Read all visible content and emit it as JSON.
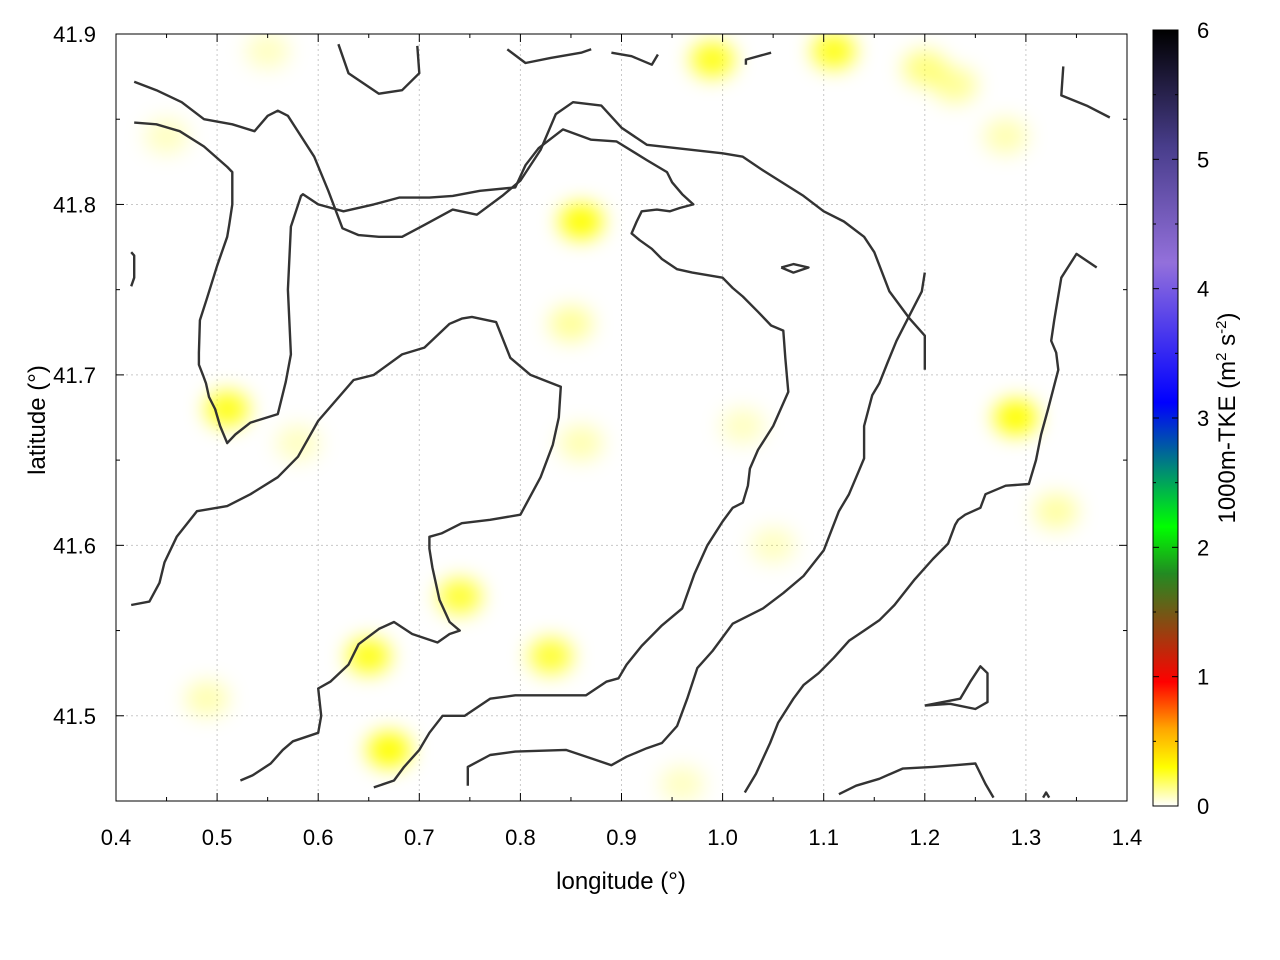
{
  "chart_data": {
    "type": "heatmap",
    "xlabel": "longitude (°)",
    "ylabel": "latitude (°)",
    "colorbar_label": "1000m-TKE (m² s⁻²)",
    "colorbar_label_parts": {
      "main": "1000m-TKE (m",
      "sup1": "2",
      "mid": " s",
      "sup2": "-2",
      "end": ")"
    },
    "xlim": [
      0.4,
      1.4
    ],
    "ylim": [
      41.45,
      41.9
    ],
    "x_ticks": [
      "0.4",
      "0.5",
      "0.6",
      "0.7",
      "0.8",
      "0.9",
      "1.0",
      "1.1",
      "1.2",
      "1.3",
      "1.4"
    ],
    "y_ticks": [
      "41.5",
      "41.6",
      "41.7",
      "41.8",
      "41.9"
    ],
    "colorbar_range": [
      0,
      6
    ],
    "colorbar_ticks": [
      "0",
      "1",
      "2",
      "3",
      "4",
      "5",
      "6"
    ],
    "colorbar_colors": [
      "#ffffff",
      "#ffff00",
      "#ffa500",
      "#ff0000",
      "#228b22",
      "#00ff00",
      "#0000ff",
      "#9370db",
      "#483d8b",
      "#000000"
    ],
    "grid": true,
    "tke_blobs": [
      {
        "x": 0.99,
        "y": 41.885,
        "value": 0.45
      },
      {
        "x": 1.11,
        "y": 41.89,
        "value": 0.45
      },
      {
        "x": 1.2,
        "y": 41.88,
        "value": 0.25
      },
      {
        "x": 0.86,
        "y": 41.79,
        "value": 0.5
      },
      {
        "x": 0.51,
        "y": 41.68,
        "value": 0.45
      },
      {
        "x": 0.74,
        "y": 41.57,
        "value": 0.4
      },
      {
        "x": 0.65,
        "y": 41.535,
        "value": 0.45
      },
      {
        "x": 0.83,
        "y": 41.535,
        "value": 0.4
      },
      {
        "x": 0.67,
        "y": 41.48,
        "value": 0.5
      },
      {
        "x": 1.29,
        "y": 41.675,
        "value": 0.5
      },
      {
        "x": 1.23,
        "y": 41.87,
        "value": 0.2
      },
      {
        "x": 1.28,
        "y": 41.84,
        "value": 0.15
      },
      {
        "x": 0.58,
        "y": 41.66,
        "value": 0.12
      },
      {
        "x": 0.45,
        "y": 41.84,
        "value": 0.12
      },
      {
        "x": 0.55,
        "y": 41.89,
        "value": 0.12
      },
      {
        "x": 0.49,
        "y": 41.51,
        "value": 0.15
      },
      {
        "x": 0.86,
        "y": 41.66,
        "value": 0.15
      },
      {
        "x": 1.02,
        "y": 41.67,
        "value": 0.12
      },
      {
        "x": 1.05,
        "y": 41.6,
        "value": 0.12
      },
      {
        "x": 1.33,
        "y": 41.62,
        "value": 0.18
      },
      {
        "x": 0.96,
        "y": 41.46,
        "value": 0.12
      },
      {
        "x": 0.85,
        "y": 41.73,
        "value": 0.2
      }
    ],
    "contours": [
      [
        [
          0.418,
          41.872
        ],
        [
          0.44,
          41.867
        ],
        [
          0.465,
          41.86
        ],
        [
          0.487,
          41.85
        ],
        [
          0.515,
          41.847
        ],
        [
          0.537,
          41.843
        ],
        [
          0.55,
          41.852
        ],
        [
          0.56,
          41.855
        ],
        [
          0.57,
          41.852
        ],
        [
          0.596,
          41.828
        ],
        [
          0.61,
          41.808
        ],
        [
          0.624,
          41.786
        ],
        [
          0.64,
          41.782
        ],
        [
          0.66,
          41.781
        ],
        [
          0.683,
          41.781
        ],
        [
          0.705,
          41.788
        ],
        [
          0.733,
          41.797
        ],
        [
          0.757,
          41.794
        ],
        [
          0.782,
          41.805
        ],
        [
          0.8,
          41.814
        ],
        [
          0.82,
          41.832
        ],
        [
          0.835,
          41.853
        ],
        [
          0.852,
          41.86
        ],
        [
          0.88,
          41.858
        ],
        [
          0.9,
          41.845
        ],
        [
          0.925,
          41.835
        ],
        [
          1.0,
          41.83
        ],
        [
          1.02,
          41.828
        ],
        [
          1.04,
          41.82
        ],
        [
          1.08,
          41.805
        ],
        [
          1.1,
          41.796
        ],
        [
          1.12,
          41.79
        ],
        [
          1.14,
          41.781
        ],
        [
          1.15,
          41.772
        ],
        [
          1.165,
          41.749
        ],
        [
          1.185,
          41.733
        ],
        [
          1.2,
          41.723
        ],
        [
          1.2,
          41.703
        ]
      ],
      [
        [
          0.418,
          41.848
        ],
        [
          0.44,
          41.847
        ],
        [
          0.463,
          41.843
        ],
        [
          0.487,
          41.834
        ],
        [
          0.51,
          41.822
        ],
        [
          0.515,
          41.819
        ],
        [
          0.515,
          41.8
        ],
        [
          0.512,
          41.788
        ],
        [
          0.51,
          41.781
        ],
        [
          0.5,
          41.764
        ],
        [
          0.49,
          41.745
        ],
        [
          0.483,
          41.732
        ],
        [
          0.482,
          41.713
        ],
        [
          0.482,
          41.706
        ],
        [
          0.486,
          41.7
        ],
        [
          0.489,
          41.695
        ],
        [
          0.492,
          41.687
        ],
        [
          0.498,
          41.68
        ],
        [
          0.503,
          41.67
        ],
        [
          0.51,
          41.66
        ],
        [
          0.518,
          41.665
        ],
        [
          0.533,
          41.672
        ],
        [
          0.56,
          41.677
        ],
        [
          0.568,
          41.696
        ],
        [
          0.573,
          41.712
        ],
        [
          0.57,
          41.75
        ],
        [
          0.573,
          41.787
        ],
        [
          0.583,
          41.805
        ],
        [
          0.585,
          41.806
        ],
        [
          0.6,
          41.8
        ],
        [
          0.625,
          41.796
        ],
        [
          0.655,
          41.8
        ],
        [
          0.68,
          41.804
        ],
        [
          0.71,
          41.804
        ],
        [
          0.733,
          41.805
        ],
        [
          0.76,
          41.808
        ],
        [
          0.795,
          41.81
        ],
        [
          0.805,
          41.823
        ],
        [
          0.818,
          41.833
        ],
        [
          0.842,
          41.844
        ],
        [
          0.87,
          41.838
        ],
        [
          0.895,
          41.837
        ],
        [
          0.925,
          41.826
        ],
        [
          0.945,
          41.819
        ],
        [
          0.95,
          41.813
        ],
        [
          0.96,
          41.806
        ],
        [
          0.971,
          41.8
        ],
        [
          0.958,
          41.798
        ],
        [
          0.948,
          41.796
        ],
        [
          0.935,
          41.797
        ],
        [
          0.92,
          41.796
        ],
        [
          0.915,
          41.79
        ],
        [
          0.91,
          41.783
        ],
        [
          0.918,
          41.779
        ],
        [
          0.93,
          41.774
        ],
        [
          0.94,
          41.768
        ],
        [
          0.955,
          41.762
        ],
        [
          0.97,
          41.76
        ],
        [
          1.0,
          41.757
        ],
        [
          1.01,
          41.751
        ],
        [
          1.02,
          41.746
        ],
        [
          1.035,
          41.737
        ],
        [
          1.048,
          41.729
        ],
        [
          1.06,
          41.726
        ],
        [
          1.062,
          41.71
        ],
        [
          1.065,
          41.69
        ],
        [
          1.05,
          41.67
        ],
        [
          1.035,
          41.656
        ],
        [
          1.027,
          41.645
        ],
        [
          1.025,
          41.635
        ],
        [
          1.02,
          41.625
        ],
        [
          1.01,
          41.622
        ],
        [
          1.0,
          41.614
        ],
        [
          0.985,
          41.6
        ],
        [
          0.972,
          41.583
        ],
        [
          0.96,
          41.563
        ],
        [
          0.94,
          41.553
        ],
        [
          0.92,
          41.541
        ],
        [
          0.905,
          41.53
        ],
        [
          0.897,
          41.522
        ],
        [
          0.885,
          41.52
        ],
        [
          0.865,
          41.512
        ],
        [
          0.845,
          41.512
        ],
        [
          0.82,
          41.512
        ],
        [
          0.795,
          41.512
        ],
        [
          0.77,
          41.51
        ],
        [
          0.745,
          41.5
        ],
        [
          0.723,
          41.5
        ],
        [
          0.71,
          41.49
        ],
        [
          0.7,
          41.48
        ],
        [
          0.685,
          41.47
        ],
        [
          0.675,
          41.462
        ],
        [
          0.655,
          41.458
        ]
      ],
      [
        [
          0.415,
          41.565
        ],
        [
          0.433,
          41.567
        ],
        [
          0.443,
          41.578
        ],
        [
          0.448,
          41.59
        ],
        [
          0.46,
          41.605
        ],
        [
          0.48,
          41.62
        ],
        [
          0.51,
          41.623
        ],
        [
          0.533,
          41.63
        ],
        [
          0.56,
          41.64
        ],
        [
          0.58,
          41.652
        ],
        [
          0.6,
          41.673
        ],
        [
          0.635,
          41.697
        ],
        [
          0.655,
          41.7
        ],
        [
          0.683,
          41.712
        ],
        [
          0.705,
          41.716
        ],
        [
          0.73,
          41.73
        ],
        [
          0.742,
          41.733
        ],
        [
          0.752,
          41.734
        ],
        [
          0.776,
          41.731
        ],
        [
          0.79,
          41.71
        ],
        [
          0.81,
          41.7
        ],
        [
          0.84,
          41.693
        ],
        [
          0.838,
          41.675
        ],
        [
          0.832,
          41.659
        ],
        [
          0.82,
          41.64
        ],
        [
          0.8,
          41.618
        ],
        [
          0.77,
          41.615
        ],
        [
          0.742,
          41.613
        ],
        [
          0.722,
          41.607
        ],
        [
          0.71,
          41.605
        ],
        [
          0.71,
          41.598
        ],
        [
          0.713,
          41.587
        ],
        [
          0.72,
          41.568
        ],
        [
          0.73,
          41.555
        ],
        [
          0.74,
          41.55
        ],
        [
          0.73,
          41.548
        ],
        [
          0.718,
          41.543
        ],
        [
          0.693,
          41.548
        ],
        [
          0.675,
          41.555
        ],
        [
          0.66,
          41.551
        ],
        [
          0.64,
          41.542
        ],
        [
          0.63,
          41.53
        ],
        [
          0.612,
          41.52
        ],
        [
          0.6,
          41.516
        ],
        [
          0.603,
          41.5
        ],
        [
          0.6,
          41.49
        ],
        [
          0.575,
          41.485
        ],
        [
          0.565,
          41.48
        ],
        [
          0.553,
          41.472
        ],
        [
          0.535,
          41.465
        ],
        [
          0.523,
          41.462
        ]
      ],
      [
        [
          0.748,
          41.459
        ],
        [
          0.748,
          41.47
        ],
        [
          0.77,
          41.477
        ],
        [
          0.795,
          41.479
        ],
        [
          0.845,
          41.48
        ],
        [
          0.87,
          41.475
        ],
        [
          0.89,
          41.471
        ],
        [
          0.905,
          41.476
        ],
        [
          0.925,
          41.481
        ],
        [
          0.94,
          41.484
        ],
        [
          0.955,
          41.494
        ],
        [
          0.965,
          41.51
        ],
        [
          0.975,
          41.528
        ],
        [
          0.99,
          41.538
        ],
        [
          1.01,
          41.554
        ],
        [
          1.04,
          41.563
        ],
        [
          1.06,
          41.572
        ],
        [
          1.08,
          41.582
        ],
        [
          1.1,
          41.597
        ],
        [
          1.115,
          41.62
        ],
        [
          1.125,
          41.63
        ],
        [
          1.135,
          41.644
        ],
        [
          1.14,
          41.651
        ],
        [
          1.14,
          41.67
        ],
        [
          1.148,
          41.688
        ],
        [
          1.155,
          41.695
        ],
        [
          1.163,
          41.707
        ],
        [
          1.172,
          41.72
        ],
        [
          1.185,
          41.735
        ],
        [
          1.197,
          41.749
        ],
        [
          1.2,
          41.76
        ]
      ],
      [
        [
          1.022,
          41.455
        ],
        [
          1.033,
          41.466
        ],
        [
          1.047,
          41.484
        ],
        [
          1.055,
          41.496
        ],
        [
          1.07,
          41.51
        ],
        [
          1.08,
          41.518
        ],
        [
          1.095,
          41.525
        ],
        [
          1.11,
          41.534
        ],
        [
          1.125,
          41.544
        ],
        [
          1.14,
          41.55
        ],
        [
          1.155,
          41.556
        ],
        [
          1.17,
          41.565
        ],
        [
          1.19,
          41.58
        ],
        [
          1.208,
          41.592
        ],
        [
          1.223,
          41.601
        ],
        [
          1.23,
          41.612
        ],
        [
          1.233,
          41.615
        ],
        [
          1.24,
          41.618
        ],
        [
          1.255,
          41.622
        ],
        [
          1.26,
          41.63
        ],
        [
          1.28,
          41.635
        ],
        [
          1.303,
          41.636
        ],
        [
          1.31,
          41.65
        ],
        [
          1.315,
          41.665
        ],
        [
          1.322,
          41.68
        ],
        [
          1.332,
          41.703
        ],
        [
          1.33,
          41.713
        ],
        [
          1.325,
          41.72
        ],
        [
          1.328,
          41.732
        ],
        [
          1.335,
          41.757
        ],
        [
          1.35,
          41.771
        ],
        [
          1.37,
          41.763
        ]
      ],
      [
        [
          1.115,
          41.454
        ],
        [
          1.132,
          41.459
        ],
        [
          1.155,
          41.463
        ],
        [
          1.178,
          41.469
        ],
        [
          1.208,
          41.47
        ],
        [
          1.23,
          41.471
        ],
        [
          1.25,
          41.472
        ],
        [
          1.26,
          41.46
        ],
        [
          1.268,
          41.452
        ]
      ],
      [
        [
          1.2,
          41.506
        ],
        [
          1.225,
          41.507
        ],
        [
          1.25,
          41.504
        ],
        [
          1.262,
          41.508
        ],
        [
          1.262,
          41.525
        ],
        [
          1.255,
          41.529
        ],
        [
          1.245,
          41.52
        ],
        [
          1.235,
          41.51
        ],
        [
          1.2,
          41.506
        ]
      ],
      [
        [
          0.415,
          41.772
        ],
        [
          0.418,
          41.77
        ],
        [
          0.418,
          41.757
        ],
        [
          0.415,
          41.752
        ]
      ],
      [
        [
          0.62,
          41.894
        ],
        [
          0.63,
          41.877
        ],
        [
          0.66,
          41.865
        ],
        [
          0.683,
          41.867
        ],
        [
          0.7,
          41.877
        ],
        [
          0.698,
          41.893
        ]
      ],
      [
        [
          0.787,
          41.891
        ],
        [
          0.805,
          41.883
        ],
        [
          0.83,
          41.886
        ],
        [
          0.86,
          41.889
        ],
        [
          0.87,
          41.891
        ]
      ],
      [
        [
          0.89,
          41.889
        ],
        [
          0.91,
          41.887
        ],
        [
          0.93,
          41.882
        ],
        [
          0.936,
          41.888
        ]
      ],
      [
        [
          1.023,
          41.882
        ],
        [
          1.023,
          41.885
        ],
        [
          1.048,
          41.889
        ]
      ],
      [
        [
          1.337,
          41.881
        ],
        [
          1.335,
          41.864
        ],
        [
          1.36,
          41.858
        ],
        [
          1.383,
          41.851
        ]
      ],
      [
        [
          1.058,
          41.763
        ],
        [
          1.07,
          41.765
        ],
        [
          1.085,
          41.763
        ],
        [
          1.07,
          41.76
        ],
        [
          1.058,
          41.763
        ]
      ],
      [
        [
          1.317,
          41.452
        ],
        [
          1.32,
          41.455
        ],
        [
          1.323,
          41.452
        ]
      ]
    ]
  }
}
